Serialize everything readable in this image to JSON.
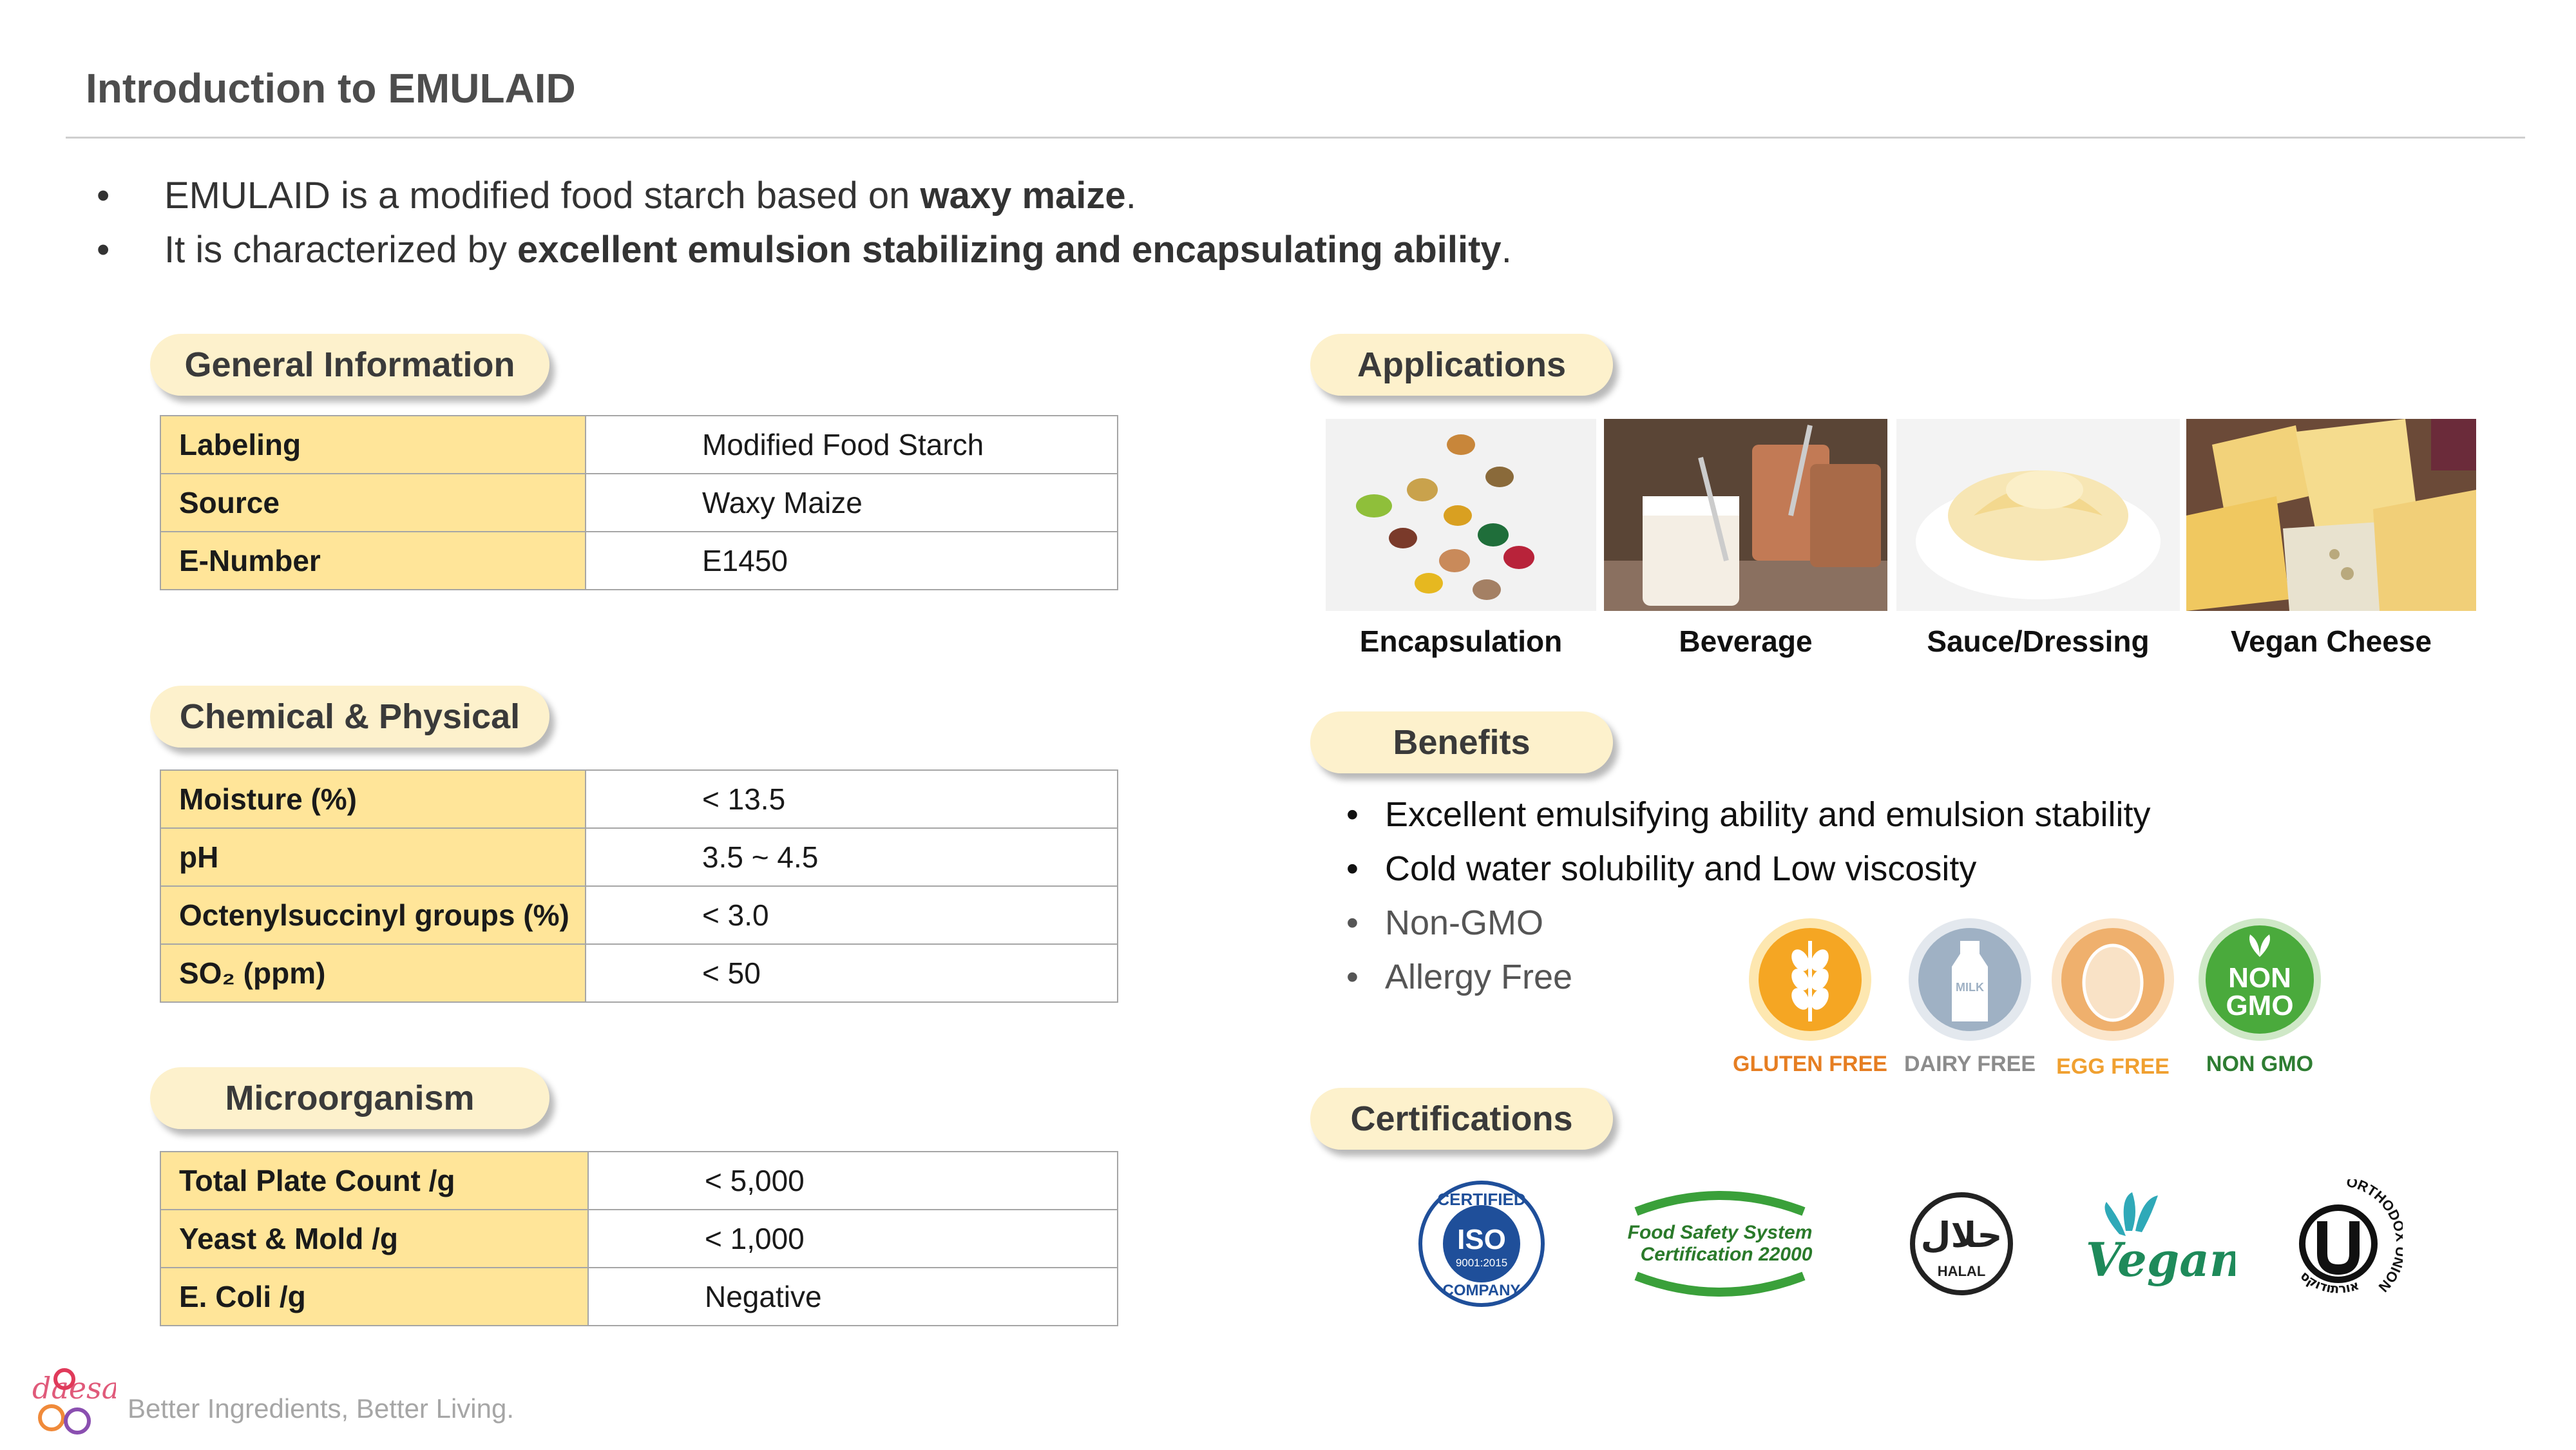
{
  "title": "Introduction to EMULAID",
  "intro": [
    {
      "pre": "EMULAID is a modified food starch based on ",
      "bold": "waxy maize",
      "post": "."
    },
    {
      "pre": "It is characterized by ",
      "bold": "excellent emulsion stabilizing and encapsulating ability",
      "post": "."
    }
  ],
  "general": {
    "heading": "General Information",
    "rows": [
      {
        "k": "Labeling",
        "v": "Modified Food Starch"
      },
      {
        "k": "Source",
        "v": "Waxy Maize"
      },
      {
        "k": "E-Number",
        "v": "E1450"
      }
    ]
  },
  "chemical": {
    "heading": "Chemical & Physical",
    "rows": [
      {
        "k": "Moisture (%)",
        "v": "< 13.5"
      },
      {
        "k": "pH",
        "v": "3.5 ~ 4.5"
      },
      {
        "k": "Octenylsuccinyl groups (%)",
        "v": "< 3.0"
      },
      {
        "k": "SO₂ (ppm)",
        "v": "< 50"
      }
    ]
  },
  "micro": {
    "heading": "Microorganism",
    "rows": [
      {
        "k": "Total Plate Count /g",
        "v": "< 5,000"
      },
      {
        "k": "Yeast & Mold /g",
        "v": "< 1,000"
      },
      {
        "k": "E. Coli /g",
        "v": "Negative"
      }
    ]
  },
  "applications": {
    "heading": "Applications",
    "items": [
      "Encapsulation",
      "Beverage",
      "Sauce/Dressing",
      "Vegan Cheese"
    ]
  },
  "benefits": {
    "heading": "Benefits",
    "items": [
      "Excellent emulsifying ability and emulsion stability",
      "Cold water solubility and Low viscosity",
      "Non-GMO",
      "Allergy Free"
    ],
    "badges": [
      {
        "label": "GLUTEN FREE",
        "color": "#e67e22"
      },
      {
        "label": "DAIRY FREE",
        "color": "#8c8c8c"
      },
      {
        "label": "EGG FREE",
        "color": "#f0a030"
      },
      {
        "label": "NON GMO",
        "color": "#2e7d32"
      }
    ],
    "badge_text": {
      "milk": "MILK",
      "nongmo_1": "NON",
      "nongmo_2": "GMO"
    }
  },
  "certifications": {
    "heading": "Certifications",
    "iso": {
      "top": "CERTIFIED",
      "mid": "ISO",
      "std": "9001:2015",
      "bottom": "COMPANY"
    },
    "fssc": {
      "line1": "Food Safety System",
      "line2": "Certification 22000"
    },
    "halal": {
      "arabic": "حلال",
      "latin": "HALAL"
    },
    "vegan": "Vegan",
    "ou": {
      "ring": "ORTHODOX UNION",
      "hebrew": "אורתודוקס"
    }
  },
  "footer": {
    "logo": "daesang",
    "tagline": "Better Ingredients, Better Living."
  }
}
